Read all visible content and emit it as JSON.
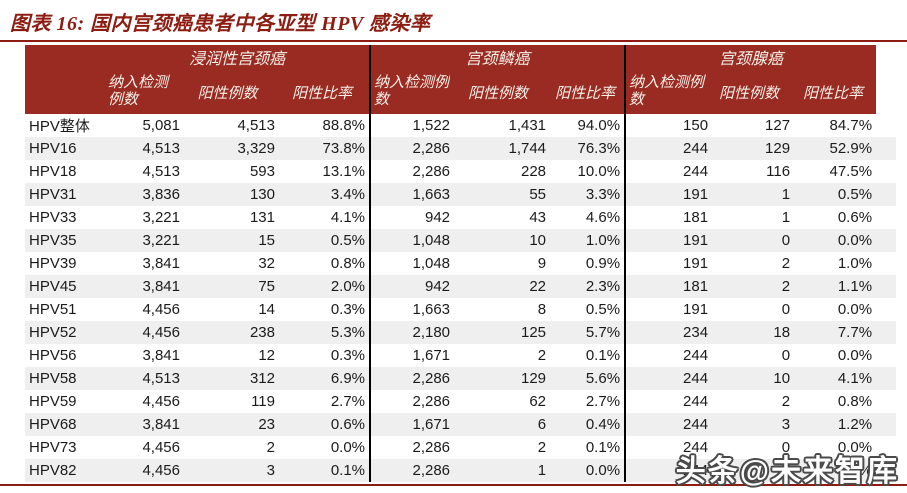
{
  "title": "图表 16:  国内宫颈癌患者中各亚型 HPV 感染率",
  "watermark": "头条@未来智库",
  "colors": {
    "header_bg": "#9A2B23",
    "title_red": "#8D1D12",
    "stripe_gray": "#EFEFEF",
    "divider_black": "#000000",
    "header_text": "#F6F1E8"
  },
  "chart_data": {
    "type": "table",
    "title": "图表 16: 国内宫颈癌患者中各亚型 HPV 感染率",
    "groups": [
      {
        "label": "浸润性宫颈癌"
      },
      {
        "label": "宫颈鳞癌"
      },
      {
        "label": "宫颈腺癌"
      }
    ],
    "sub_columns": [
      "纳入检测例数",
      "阳性例数",
      "阳性比率"
    ],
    "rows": [
      {
        "label": "HPV整体",
        "values": [
          "5,081",
          "4,513",
          "88.8%",
          "1,522",
          "1,431",
          "94.0%",
          "150",
          "127",
          "84.7%"
        ]
      },
      {
        "label": "HPV16",
        "values": [
          "4,513",
          "3,329",
          "73.8%",
          "2,286",
          "1,744",
          "76.3%",
          "244",
          "129",
          "52.9%"
        ]
      },
      {
        "label": "HPV18",
        "values": [
          "4,513",
          "593",
          "13.1%",
          "2,286",
          "228",
          "10.0%",
          "244",
          "116",
          "47.5%"
        ]
      },
      {
        "label": "HPV31",
        "values": [
          "3,836",
          "130",
          "3.4%",
          "1,663",
          "55",
          "3.3%",
          "191",
          "1",
          "0.5%"
        ]
      },
      {
        "label": "HPV33",
        "values": [
          "3,221",
          "131",
          "4.1%",
          "942",
          "43",
          "4.6%",
          "181",
          "1",
          "0.6%"
        ]
      },
      {
        "label": "HPV35",
        "values": [
          "3,221",
          "15",
          "0.5%",
          "1,048",
          "10",
          "1.0%",
          "191",
          "0",
          "0.0%"
        ]
      },
      {
        "label": "HPV39",
        "values": [
          "3,841",
          "32",
          "0.8%",
          "1,048",
          "9",
          "0.9%",
          "191",
          "2",
          "1.0%"
        ]
      },
      {
        "label": "HPV45",
        "values": [
          "3,841",
          "75",
          "2.0%",
          "942",
          "22",
          "2.3%",
          "181",
          "2",
          "1.1%"
        ]
      },
      {
        "label": "HPV51",
        "values": [
          "4,456",
          "14",
          "0.3%",
          "1,663",
          "8",
          "0.5%",
          "191",
          "0",
          "0.0%"
        ]
      },
      {
        "label": "HPV52",
        "values": [
          "4,456",
          "238",
          "5.3%",
          "2,180",
          "125",
          "5.7%",
          "234",
          "18",
          "7.7%"
        ]
      },
      {
        "label": "HPV56",
        "values": [
          "3,841",
          "12",
          "0.3%",
          "1,671",
          "2",
          "0.1%",
          "244",
          "0",
          "0.0%"
        ]
      },
      {
        "label": "HPV58",
        "values": [
          "4,513",
          "312",
          "6.9%",
          "2,286",
          "129",
          "5.6%",
          "244",
          "10",
          "4.1%"
        ]
      },
      {
        "label": "HPV59",
        "values": [
          "4,456",
          "119",
          "2.7%",
          "2,286",
          "62",
          "2.7%",
          "244",
          "2",
          "0.8%"
        ]
      },
      {
        "label": "HPV68",
        "values": [
          "3,841",
          "23",
          "0.6%",
          "1,671",
          "6",
          "0.4%",
          "244",
          "3",
          "1.2%"
        ]
      },
      {
        "label": "HPV73",
        "values": [
          "4,456",
          "2",
          "0.0%",
          "2,286",
          "2",
          "0.1%",
          "244",
          "0",
          "0.0%"
        ]
      },
      {
        "label": "HPV82",
        "values": [
          "4,456",
          "3",
          "0.1%",
          "2,286",
          "1",
          "0.0%",
          "244",
          "0",
          "0.0%"
        ]
      }
    ]
  }
}
